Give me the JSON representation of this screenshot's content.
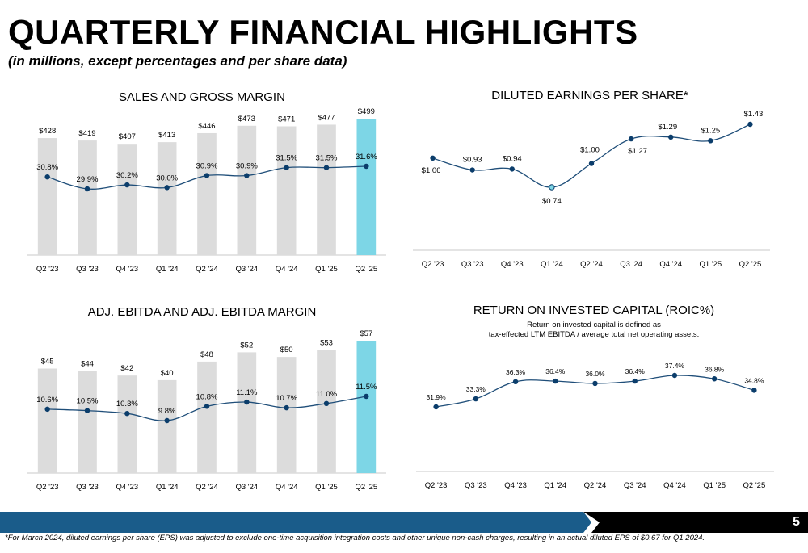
{
  "header": {
    "title": "QUARTERLY FINANCIAL HIGHLIGHTS",
    "subtitle": "(in millions, except percentages and per share data)"
  },
  "colors": {
    "bar": "#dcdcdc",
    "highlight_bar": "#7dd6e6",
    "line": "#1f4e79",
    "point": "#0b3d6b",
    "highlight_point": "#7dd6e6",
    "axis": "#c8c8c8",
    "footer_blue": "#1a5c8a",
    "footer_black": "#000000"
  },
  "chart_data": [
    {
      "type": "bar",
      "title": "SALES AND GROSS MARGIN",
      "categories": [
        "Q2 '23",
        "Q3 '23",
        "Q4 '23",
        "Q1 '24",
        "Q2 '24",
        "Q3 '24",
        "Q4 '24",
        "Q1 '25",
        "Q2 '25"
      ],
      "bar_values": [
        428,
        419,
        407,
        413,
        446,
        473,
        471,
        477,
        499
      ],
      "bar_labels": [
        "$428",
        "$419",
        "$407",
        "$413",
        "$446",
        "$473",
        "$471",
        "$477",
        "$499"
      ],
      "line_values": [
        30.8,
        29.9,
        30.2,
        30.0,
        30.9,
        30.9,
        31.5,
        31.5,
        31.6
      ],
      "line_labels": [
        "30.8%",
        "29.9%",
        "30.2%",
        "30.0%",
        "30.9%",
        "30.9%",
        "31.5%",
        "31.5%",
        "31.6%"
      ],
      "highlight_index": 8
    },
    {
      "type": "line",
      "title": "DILUTED EARNINGS PER SHARE*",
      "categories": [
        "Q2 '23",
        "Q3 '23",
        "Q4 '23",
        "Q1 '24",
        "Q2 '24",
        "Q3 '24",
        "Q4 '24",
        "Q1 '25",
        "Q2 '25"
      ],
      "values": [
        1.06,
        0.93,
        0.94,
        0.74,
        1.0,
        1.27,
        1.29,
        1.25,
        1.43
      ],
      "labels": [
        "$1.06",
        "$0.93",
        "$0.94",
        "$0.74",
        "$1.00",
        "$1.27",
        "$1.29",
        "$1.25",
        "$1.43"
      ],
      "highlight_point_index": 3
    },
    {
      "type": "bar",
      "title": "ADJ. EBITDA AND ADJ. EBITDA MARGIN",
      "categories": [
        "Q2 '23",
        "Q3 '23",
        "Q4 '23",
        "Q1 '24",
        "Q2 '24",
        "Q3 '24",
        "Q4 '24",
        "Q1 '25",
        "Q2 '25"
      ],
      "bar_values": [
        45,
        44,
        42,
        40,
        48,
        52,
        50,
        53,
        57
      ],
      "bar_labels": [
        "$45",
        "$44",
        "$42",
        "$40",
        "$48",
        "$52",
        "$50",
        "$53",
        "$57"
      ],
      "line_values": [
        10.6,
        10.5,
        10.3,
        9.8,
        10.8,
        11.1,
        10.7,
        11.0,
        11.5
      ],
      "line_labels": [
        "10.6%",
        "10.5%",
        "10.3%",
        "9.8%",
        "10.8%",
        "11.1%",
        "10.7%",
        "11.0%",
        "11.5%"
      ],
      "highlight_index": 8
    },
    {
      "type": "line",
      "title": "RETURN ON INVESTED CAPITAL (ROIC%)",
      "note_lines": [
        "Return on invested capital is defined as",
        "tax-effected LTM EBITDA / average total net operating assets."
      ],
      "categories": [
        "Q2 '23",
        "Q3 '23",
        "Q4 '23",
        "Q1 '24",
        "Q2 '24",
        "Q3 '24",
        "Q4 '24",
        "Q1 '25",
        "Q2 '25"
      ],
      "values": [
        31.9,
        33.3,
        36.3,
        36.4,
        36.0,
        36.4,
        37.4,
        36.8,
        34.8
      ],
      "labels": [
        "31.9%",
        "33.3%",
        "36.3%",
        "36.4%",
        "36.0%",
        "36.4%",
        "37.4%",
        "36.8%",
        "34.8%"
      ]
    }
  ],
  "footer": {
    "page_number": "5",
    "footnote": "*For March 2024, diluted earnings per share (EPS) was adjusted to exclude one-time acquisition integration costs and other unique non-cash charges, resulting in an actual diluted EPS of $0.67 for Q1 2024."
  }
}
